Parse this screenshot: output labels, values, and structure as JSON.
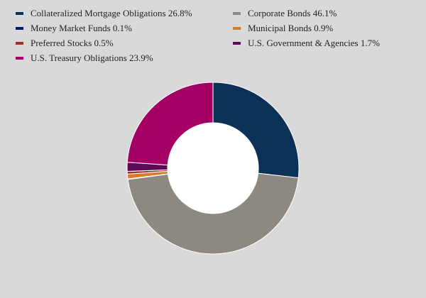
{
  "chart_data": {
    "type": "pie",
    "variant": "donut",
    "title": "",
    "legend_position": "top",
    "slices": [
      {
        "label": "Collateralized Mortgage Obligations",
        "value": 26.8,
        "display": "Collateralized Mortgage Obligations 26.8%",
        "color": "#0b3157"
      },
      {
        "label": "Corporate Bonds",
        "value": 46.1,
        "display": "Corporate Bonds 46.1%",
        "color": "#8e8980"
      },
      {
        "label": "Money Market Funds",
        "value": 0.1,
        "display": "Money Market Funds 0.1%",
        "color": "#001a70"
      },
      {
        "label": "Municipal Bonds",
        "value": 0.9,
        "display": "Municipal Bonds 0.9%",
        "color": "#d27c2c"
      },
      {
        "label": "Preferred Stocks",
        "value": 0.5,
        "display": "Preferred Stocks 0.5%",
        "color": "#a3302c"
      },
      {
        "label": "U.S. Government & Agencies",
        "value": 1.7,
        "display": "U.S. Government & Agencies 1.7%",
        "color": "#5e0a55"
      },
      {
        "label": "U.S. Treasury Obligations",
        "value": 23.9,
        "display": "U.S. Treasury Obligations 23.9%",
        "color": "#a50064"
      }
    ]
  }
}
